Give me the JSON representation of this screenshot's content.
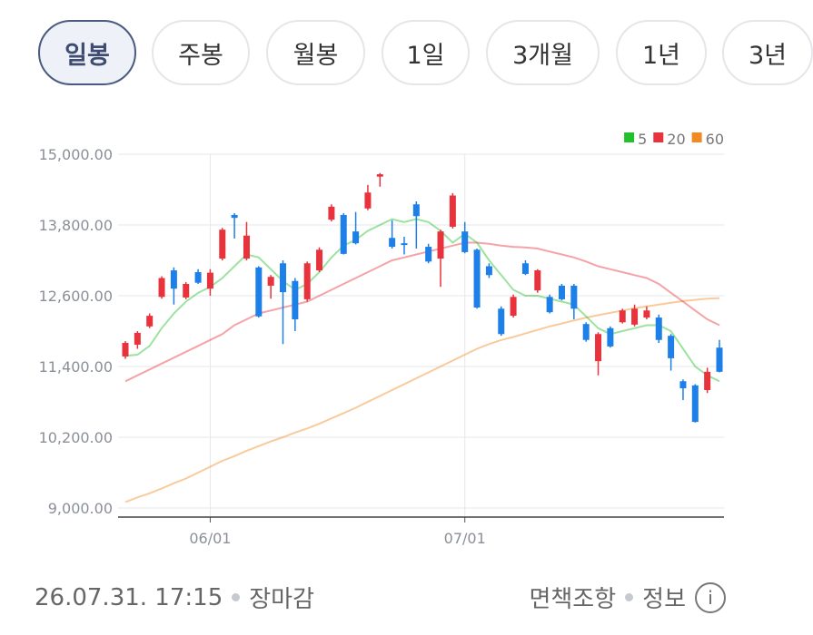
{
  "tabs": [
    "일봉",
    "주봉",
    "월봉",
    "1일",
    "3개월",
    "1년",
    "3년"
  ],
  "chart_data": {
    "type": "candlestick",
    "categories": [
      null,
      null,
      null,
      null,
      null,
      null,
      null,
      "06/01",
      null,
      null,
      null,
      null,
      null,
      null,
      null,
      null,
      null,
      null,
      null,
      null,
      null,
      null,
      null,
      null,
      null,
      null,
      null,
      null,
      "07/01",
      null,
      null,
      null,
      null,
      null,
      null,
      null,
      null,
      null,
      null,
      null,
      null,
      null,
      null,
      null,
      null,
      null,
      null,
      null,
      null,
      null
    ],
    "ohlc": [
      [
        11570,
        11830,
        11530,
        11800
      ],
      [
        11770,
        12000,
        11700,
        11970
      ],
      [
        12080,
        12300,
        12050,
        12260
      ],
      [
        12580,
        12930,
        12550,
        12900
      ],
      [
        13030,
        13080,
        12450,
        12720
      ],
      [
        12570,
        12830,
        12540,
        12800
      ],
      [
        13000,
        13050,
        12800,
        12820
      ],
      [
        12720,
        13050,
        12600,
        12990
      ],
      [
        13230,
        13750,
        13200,
        13720
      ],
      [
        13970,
        14000,
        13570,
        13920
      ],
      [
        13230,
        13850,
        13200,
        13620
      ],
      [
        13080,
        13100,
        12230,
        12250
      ],
      [
        12770,
        12950,
        12550,
        12920
      ],
      [
        13150,
        13200,
        11780,
        12660
      ],
      [
        12850,
        12900,
        12000,
        12200
      ],
      [
        12540,
        13180,
        12500,
        13150
      ],
      [
        13030,
        13420,
        13000,
        13380
      ],
      [
        13890,
        14150,
        13860,
        14110
      ],
      [
        13970,
        14000,
        13300,
        13310
      ],
      [
        13690,
        14020,
        13470,
        13490
      ],
      [
        14080,
        14480,
        14050,
        14350
      ],
      [
        14620,
        14680,
        14450,
        14660
      ],
      [
        13580,
        13880,
        13400,
        13430
      ],
      [
        13490,
        13600,
        13300,
        13460
      ],
      [
        14150,
        14200,
        13400,
        13950
      ],
      [
        13430,
        13480,
        13150,
        13180
      ],
      [
        13230,
        13720,
        12750,
        13690
      ],
      [
        13770,
        14340,
        13740,
        14300
      ],
      [
        13690,
        13850,
        13320,
        13340
      ],
      [
        13380,
        13400,
        12380,
        12400
      ],
      [
        13100,
        13150,
        12900,
        12950
      ],
      [
        12380,
        12420,
        11920,
        11950
      ],
      [
        12260,
        12620,
        12230,
        12580
      ],
      [
        13150,
        13200,
        12950,
        12970
      ],
      [
        12690,
        13050,
        12650,
        13030
      ],
      [
        12580,
        12620,
        12300,
        12320
      ],
      [
        12770,
        12800,
        12520,
        12540
      ],
      [
        12770,
        12800,
        12200,
        12380
      ],
      [
        12120,
        12150,
        11820,
        11850
      ],
      [
        11490,
        11980,
        11250,
        11950
      ],
      [
        12050,
        12080,
        11720,
        11740
      ],
      [
        12150,
        12380,
        12130,
        12350
      ],
      [
        12110,
        12450,
        12080,
        12380
      ],
      [
        12230,
        12420,
        12200,
        12350
      ],
      [
        12230,
        12280,
        11800,
        11850
      ],
      [
        11920,
        11950,
        11330,
        11540
      ],
      [
        11150,
        11180,
        10830,
        11030
      ],
      [
        11080,
        11100,
        10450,
        10460
      ],
      [
        11000,
        11380,
        10950,
        11310
      ],
      [
        11720,
        11850,
        11300,
        11310
      ]
    ],
    "up_color": "#e8323c",
    "down_color": "#1d7fe8",
    "series": [
      {
        "name": "5",
        "color": "#22c02a",
        "values": [
          11580,
          11600,
          11750,
          12050,
          12300,
          12500,
          12650,
          12750,
          12900,
          13100,
          13300,
          13250,
          13050,
          12850,
          12700,
          12800,
          13000,
          13250,
          13450,
          13550,
          13700,
          13800,
          13900,
          13850,
          13900,
          13850,
          13700,
          13500,
          13650,
          13500,
          13200,
          12950,
          12700,
          12600,
          12600,
          12550,
          12500,
          12450,
          12250,
          12050,
          11950,
          12000,
          12050,
          12100,
          12100,
          12000,
          11700,
          11400,
          11250,
          11150
        ]
      },
      {
        "name": "20",
        "color": "#e8323c",
        "values": [
          11150,
          11250,
          11350,
          11450,
          11550,
          11650,
          11750,
          11850,
          11950,
          12100,
          12200,
          12300,
          12350,
          12400,
          12450,
          12500,
          12600,
          12700,
          12800,
          12900,
          13000,
          13100,
          13200,
          13250,
          13300,
          13350,
          13400,
          13450,
          13500,
          13500,
          13480,
          13450,
          13430,
          13420,
          13400,
          13350,
          13300,
          13250,
          13180,
          13100,
          13050,
          13000,
          12950,
          12900,
          12800,
          12650,
          12500,
          12350,
          12200,
          12100
        ]
      },
      {
        "name": "60",
        "color": "#f28a24",
        "values": [
          9100,
          9180,
          9250,
          9330,
          9420,
          9500,
          9600,
          9700,
          9800,
          9880,
          9970,
          10050,
          10130,
          10200,
          10280,
          10350,
          10430,
          10520,
          10610,
          10700,
          10800,
          10900,
          11000,
          11100,
          11200,
          11300,
          11400,
          11500,
          11600,
          11700,
          11780,
          11850,
          11900,
          11960,
          12020,
          12080,
          12130,
          12180,
          12230,
          12270,
          12310,
          12350,
          12390,
          12420,
          12450,
          12480,
          12510,
          12530,
          12550,
          12560
        ]
      }
    ],
    "ylim": [
      9000,
      15000
    ],
    "yticks": [
      {
        "value": 9000,
        "label": "9,000.00"
      },
      {
        "value": 10200,
        "label": "10,200.00"
      },
      {
        "value": 11400,
        "label": "11,400.00"
      },
      {
        "value": 12600,
        "label": "12,600.00"
      },
      {
        "value": 13800,
        "label": "13,800.00"
      },
      {
        "value": 15000,
        "label": "15,000.00"
      }
    ],
    "grid": true,
    "legend": "top-right"
  },
  "footer": {
    "timestamp": "26.07.31. 17:15",
    "status": "장마감",
    "disclaimer": "면책조항",
    "info": "정보"
  }
}
